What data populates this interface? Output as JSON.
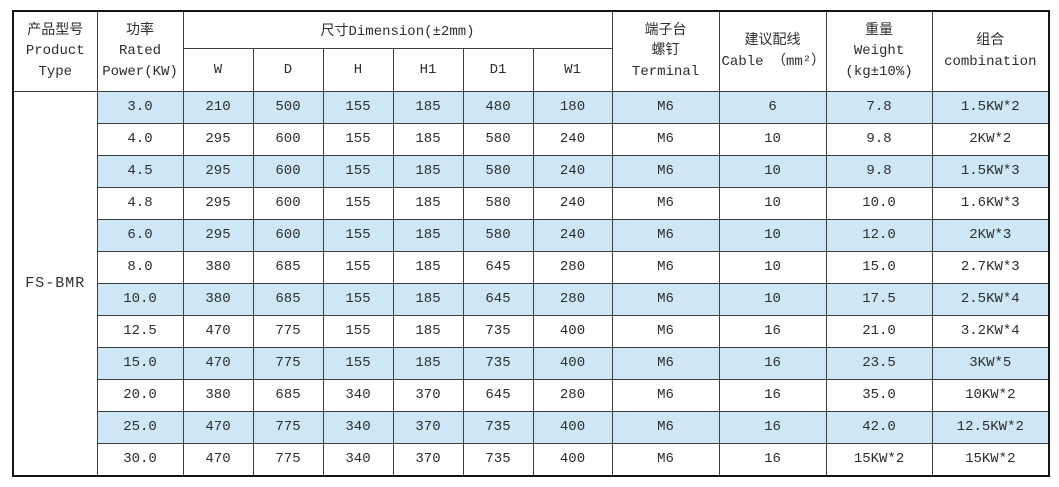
{
  "colors": {
    "row_stripe": "#cde7f6",
    "border_outer": "#141414",
    "border_inner": "#3f3f3f",
    "text": "#2e2e2e"
  },
  "table": {
    "model": "FS-BMR",
    "header": {
      "product_type": "产品型号\nProduct\nType",
      "rated_power": "功率\nRated\nPower(KW)",
      "dimension": "尺寸Dimension(±2mm)",
      "dimension_cols": [
        "W",
        "D",
        "H",
        "H1",
        "D1",
        "W1"
      ],
      "terminal": "端子台\n螺钉\nTerminal",
      "cable": "建议配线\nCable （mm²）",
      "weight": "重量\nWeight\n(kg±10%)",
      "combination": "组合\ncombination"
    },
    "rows": [
      [
        "3.0",
        "210",
        "500",
        "155",
        "185",
        "480",
        "180",
        "M6",
        "6",
        "7.8",
        "1.5KW*2"
      ],
      [
        "4.0",
        "295",
        "600",
        "155",
        "185",
        "580",
        "240",
        "M6",
        "10",
        "9.8",
        "2KW*2"
      ],
      [
        "4.5",
        "295",
        "600",
        "155",
        "185",
        "580",
        "240",
        "M6",
        "10",
        "9.8",
        "1.5KW*3"
      ],
      [
        "4.8",
        "295",
        "600",
        "155",
        "185",
        "580",
        "240",
        "M6",
        "10",
        "10.0",
        "1.6KW*3"
      ],
      [
        "6.0",
        "295",
        "600",
        "155",
        "185",
        "580",
        "240",
        "M6",
        "10",
        "12.0",
        "2KW*3"
      ],
      [
        "8.0",
        "380",
        "685",
        "155",
        "185",
        "645",
        "280",
        "M6",
        "10",
        "15.0",
        "2.7KW*3"
      ],
      [
        "10.0",
        "380",
        "685",
        "155",
        "185",
        "645",
        "280",
        "M6",
        "10",
        "17.5",
        "2.5KW*4"
      ],
      [
        "12.5",
        "470",
        "775",
        "155",
        "185",
        "735",
        "400",
        "M6",
        "16",
        "21.0",
        "3.2KW*4"
      ],
      [
        "15.0",
        "470",
        "775",
        "155",
        "185",
        "735",
        "400",
        "M6",
        "16",
        "23.5",
        "3KW*5"
      ],
      [
        "20.0",
        "380",
        "685",
        "340",
        "370",
        "645",
        "280",
        "M6",
        "16",
        "35.0",
        "10KW*2"
      ],
      [
        "25.0",
        "470",
        "775",
        "340",
        "370",
        "735",
        "400",
        "M6",
        "16",
        "42.0",
        "12.5KW*2"
      ],
      [
        "30.0",
        "470",
        "775",
        "340",
        "370",
        "735",
        "400",
        "M6",
        "16",
        "15KW*2",
        "15KW*2"
      ]
    ]
  }
}
